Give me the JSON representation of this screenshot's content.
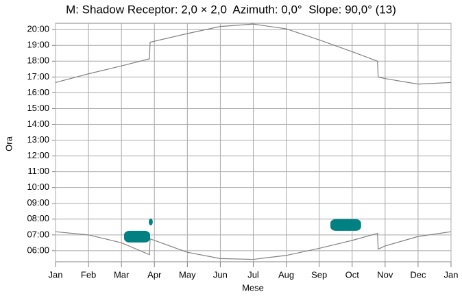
{
  "chart_data": {
    "type": "line",
    "title": "M: Shadow Receptor: 2,0 × 2,0  Azimuth: 0,0°  Slope: 90,0° (13)",
    "x_label": "Mese",
    "y_label": "Ora",
    "xlim": [
      0,
      12
    ],
    "xticks": [
      {
        "value": 0,
        "label": "Jan"
      },
      {
        "value": 1,
        "label": "Feb"
      },
      {
        "value": 2,
        "label": "Mar"
      },
      {
        "value": 3,
        "label": "Apr"
      },
      {
        "value": 4,
        "label": "May"
      },
      {
        "value": 5,
        "label": "Jun"
      },
      {
        "value": 6,
        "label": "Jul"
      },
      {
        "value": 7,
        "label": "Aug"
      },
      {
        "value": 8,
        "label": "Sep"
      },
      {
        "value": 9,
        "label": "Oct"
      },
      {
        "value": 10,
        "label": "Nov"
      },
      {
        "value": 11,
        "label": "Dec"
      },
      {
        "value": 12,
        "label": "Jan"
      }
    ],
    "ylim": [
      5.3,
      20.4
    ],
    "yticks": [
      {
        "value": 6,
        "label": "06:00"
      },
      {
        "value": 7,
        "label": "07:00"
      },
      {
        "value": 8,
        "label": "08:00"
      },
      {
        "value": 9,
        "label": "09:00"
      },
      {
        "value": 10,
        "label": "10:00"
      },
      {
        "value": 11,
        "label": "11:00"
      },
      {
        "value": 12,
        "label": "12:00"
      },
      {
        "value": 13,
        "label": "13:00"
      },
      {
        "value": 14,
        "label": "14:00"
      },
      {
        "value": 15,
        "label": "15:00"
      },
      {
        "value": 16,
        "label": "16:00"
      },
      {
        "value": 17,
        "label": "17:00"
      },
      {
        "value": 18,
        "label": "18:00"
      },
      {
        "value": 19,
        "label": "19:00"
      },
      {
        "value": 20,
        "label": "20:00"
      }
    ],
    "grid": true,
    "series": [
      {
        "color": "#808080",
        "x": [
          0,
          1,
          2,
          2.85,
          2.87,
          4,
          5,
          6,
          7,
          8,
          9,
          9.77,
          9.79,
          10,
          11,
          12
        ],
        "values": [
          16.65,
          17.2,
          17.7,
          18.15,
          19.2,
          19.75,
          20.2,
          20.35,
          20.05,
          19.35,
          18.6,
          18.0,
          17.0,
          16.9,
          16.55,
          16.65
        ]
      },
      {
        "color": "#808080",
        "x": [
          0,
          1,
          2,
          2.85,
          2.87,
          4,
          5,
          6,
          7,
          8,
          9,
          9.77,
          9.79,
          10,
          11,
          12
        ],
        "values": [
          7.2,
          7.0,
          6.5,
          5.75,
          6.75,
          5.9,
          5.5,
          5.45,
          5.7,
          6.15,
          6.65,
          7.1,
          6.1,
          6.3,
          6.9,
          7.2
        ]
      }
    ],
    "shadow": {
      "color": "#008080",
      "periods": [
        {
          "x": [
            2.08,
            2.87
          ],
          "y": [
            6.52,
            7.26
          ]
        },
        {
          "x": [
            2.83,
            2.95
          ],
          "y": [
            7.6,
            8.04
          ]
        },
        {
          "x": [
            8.34,
            9.27
          ],
          "y": [
            7.26,
            8.0
          ]
        }
      ]
    }
  }
}
